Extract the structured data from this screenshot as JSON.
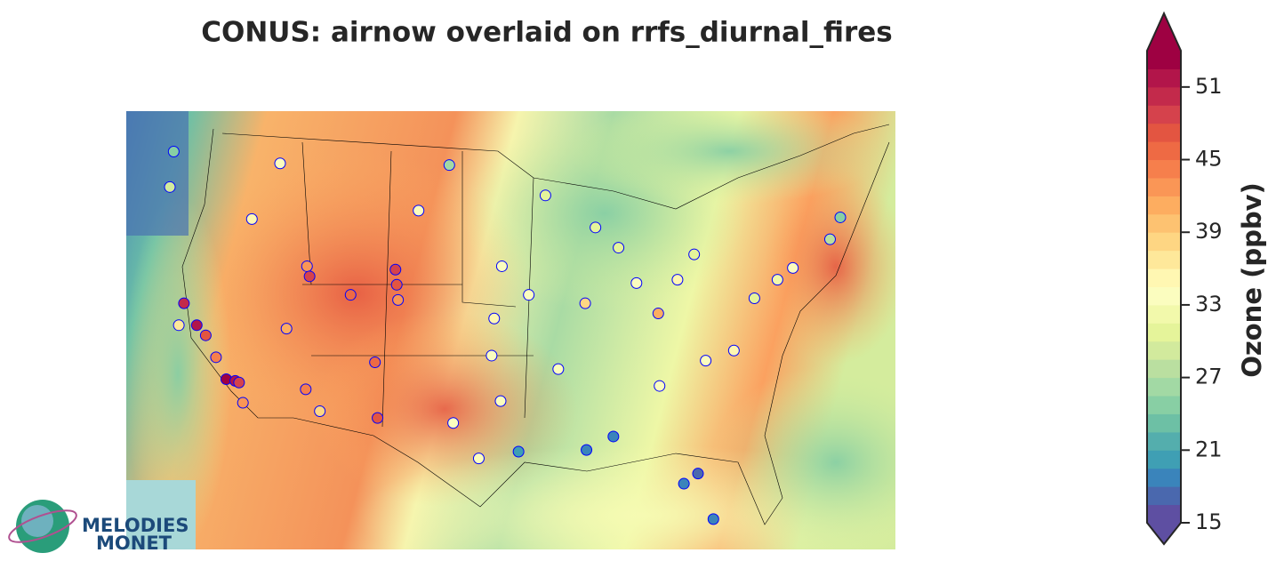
{
  "chart_data": {
    "type": "map",
    "title": "CONUS: airnow overlaid on rrfs_diurnal_fires",
    "colorbar_label": "Ozone (ppbv)",
    "clim": [
      15,
      54
    ],
    "colorbar_ticks": [
      15,
      21,
      27,
      33,
      39,
      45,
      51
    ],
    "colors": [
      "#5e4fa2",
      "#4a68ae",
      "#3a84bb",
      "#3f9fb4",
      "#54aead",
      "#6dc0a5",
      "#88cfa4",
      "#a2d9a4",
      "#badfa0",
      "#d2ea9d",
      "#e5f49a",
      "#f2f9ab",
      "#fbfdbf",
      "#fff7b2",
      "#fee89a",
      "#fed683",
      "#fdc271",
      "#fdad60",
      "#fa9656",
      "#f67f4c",
      "#ee6a44",
      "#e35541",
      "#d5424c",
      "#c32a4b",
      "#b2154a",
      "#9e0142"
    ],
    "marker_edge_color": "#0000ff",
    "lon_range": [
      -126,
      -66
    ],
    "lat_range": [
      24,
      50
    ],
    "sites": {
      "lon": [
        -122.3,
        -122.6,
        -121.5,
        -120.5,
        -119.8,
        -118.2,
        -117.5,
        -116.9,
        -117.2,
        -119.0,
        -121.9,
        -112.0,
        -111.9,
        -110.9,
        -106.6,
        -104.9,
        -105.0,
        -108.5,
        -111.7,
        -113.5,
        -116.2,
        -114.0,
        -106.4,
        -104.8,
        -100.5,
        -97.5,
        -96.8,
        -95.4,
        -94.6,
        -90.1,
        -87.6,
        -86.2,
        -84.4,
        -83.0,
        -81.7,
        -80.2,
        -81.4,
        -82.5,
        -77.0,
        -75.2,
        -74.0,
        -71.1,
        -70.3,
        -78.6,
        -80.8,
        -84.5,
        -88.0,
        -90.2,
        -93.3,
        -96.7,
        -98.5,
        -100.8,
        -103.2,
        -97.3,
        -92.3,
        -89.4
      ],
      "lat": [
        47.6,
        45.5,
        38.6,
        37.3,
        36.7,
        34.1,
        34.0,
        32.7,
        33.9,
        35.4,
        37.3,
        33.5,
        40.8,
        32.2,
        35.1,
        39.7,
        40.6,
        39.1,
        40.2,
        37.1,
        43.6,
        46.9,
        31.8,
        38.8,
        31.5,
        35.5,
        32.8,
        29.8,
        39.1,
        29.9,
        41.9,
        39.8,
        33.7,
        40.0,
        41.5,
        25.8,
        28.5,
        27.9,
        38.9,
        40.0,
        40.7,
        42.4,
        43.7,
        35.8,
        35.2,
        38.0,
        30.7,
        38.6,
        45.0,
        40.8,
        29.4,
        46.8,
        44.1,
        37.7,
        34.7,
        43.1
      ],
      "values": [
        24,
        29,
        50,
        52,
        47,
        53,
        51,
        42,
        48,
        44,
        36,
        44,
        42,
        38,
        45,
        47,
        49,
        45,
        48,
        41,
        35,
        33,
        47,
        43,
        33,
        34,
        33,
        20,
        33,
        18,
        31,
        33,
        34,
        35,
        31,
        18,
        17,
        19,
        31,
        32,
        33,
        27,
        24,
        35,
        34,
        41,
        19,
        38,
        30,
        33,
        33,
        26,
        33,
        35,
        33,
        31
      ]
    },
    "logo": [
      "MELODIES",
      "MONET"
    ]
  }
}
